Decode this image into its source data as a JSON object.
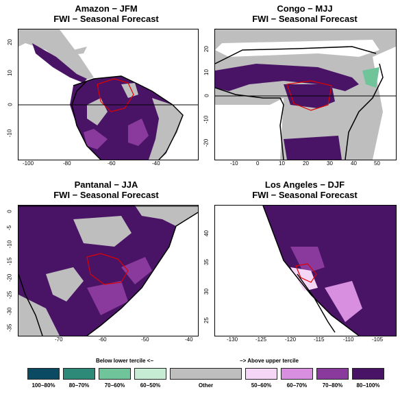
{
  "panels": [
    {
      "title1": "Amazon  −  JFM",
      "title2": "FWI − Seasonal Forecast",
      "xticks": [
        "-100",
        "-80",
        "-60",
        "-40"
      ],
      "yticks": [
        "20",
        "10",
        "0",
        "-10"
      ]
    },
    {
      "title1": "Congo  −  MJJ",
      "title2": "FWI − Seasonal Forecast",
      "xticks": [
        "-10",
        "0",
        "10",
        "20",
        "30",
        "40",
        "50"
      ],
      "yticks": [
        "20",
        "10",
        "0",
        "-10",
        "-20"
      ]
    },
    {
      "title1": "Pantanal  −  JJA",
      "title2": "FWI − Seasonal Forecast",
      "xticks": [
        "-70",
        "-60",
        "-50",
        "-40"
      ],
      "yticks": [
        "0",
        "-5",
        "-10",
        "-15",
        "-20",
        "-25",
        "-30",
        "-35"
      ]
    },
    {
      "title1": "Los Angeles  −  DJF",
      "title2": "FWI − Seasonal Forecast",
      "xticks": [
        "-130",
        "-125",
        "-120",
        "-115",
        "-110",
        "-105"
      ],
      "yticks": [
        "40",
        "35",
        "30",
        "25"
      ]
    }
  ],
  "legend": {
    "below_label": "Below lower tercile <−",
    "above_label": "−> Above upper tercile",
    "items": [
      {
        "label": "100−80%",
        "color": "#0b4a63"
      },
      {
        "label": "80−70%",
        "color": "#2e8a78"
      },
      {
        "label": "70−60%",
        "color": "#6fc49a"
      },
      {
        "label": "60−50%",
        "color": "#c6ecd3"
      },
      {
        "label": "Other",
        "color": "#bebebe"
      },
      {
        "label": "50−60%",
        "color": "#f6d6f6"
      },
      {
        "label": "60−70%",
        "color": "#d98fe0"
      },
      {
        "label": "70−80%",
        "color": "#8a3a9c"
      },
      {
        "label": "80−100%",
        "color": "#4a1466"
      }
    ]
  }
}
